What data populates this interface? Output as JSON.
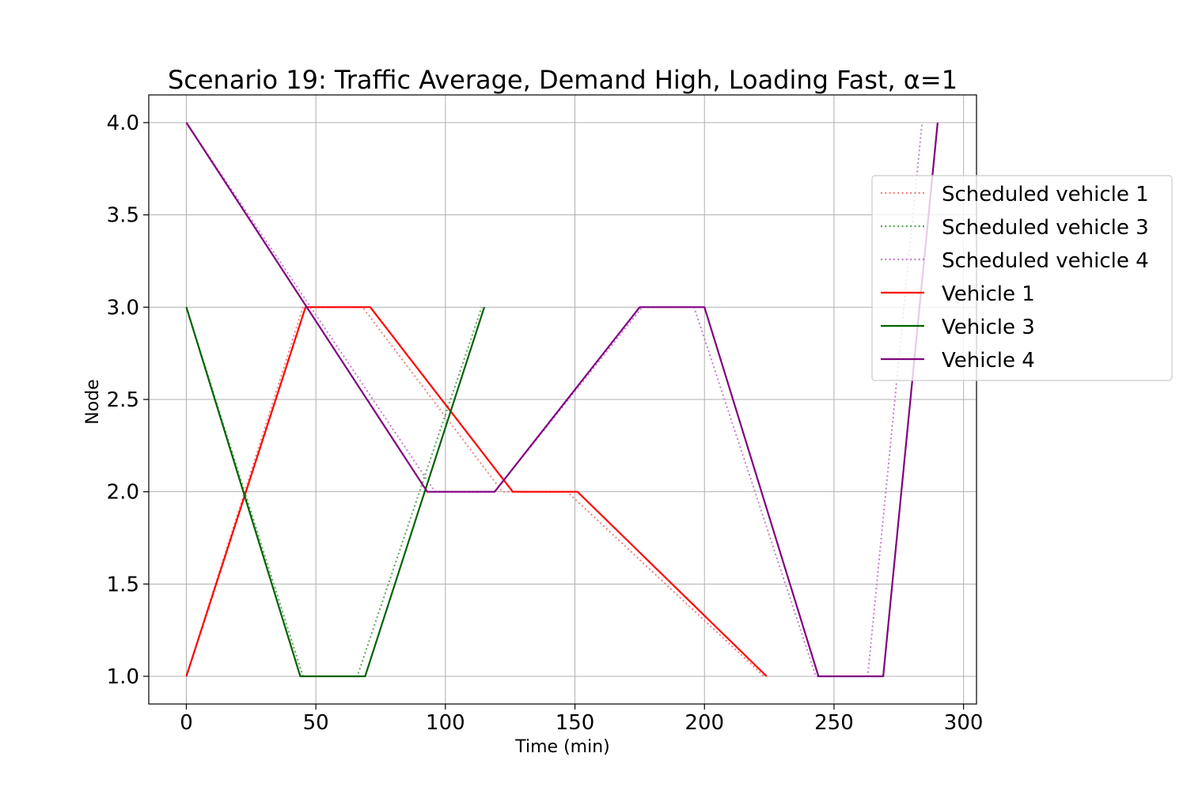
{
  "chart_data": {
    "type": "line",
    "title": "Scenario 19: Traffic Average, Demand High, Loading Fast, α=1",
    "xlabel": "Time (min)",
    "ylabel": "Node",
    "xlim": [
      -14.5,
      305
    ],
    "ylim": [
      0.85,
      4.15
    ],
    "xticks": [
      0,
      50,
      100,
      150,
      200,
      250,
      300
    ],
    "yticks": [
      1.0,
      1.5,
      2.0,
      2.5,
      3.0,
      3.5,
      4.0
    ],
    "xtick_labels": [
      "0",
      "50",
      "100",
      "150",
      "200",
      "250",
      "300"
    ],
    "ytick_labels": [
      "1.0",
      "1.5",
      "2.0",
      "2.5",
      "3.0",
      "3.5",
      "4.0"
    ],
    "grid": true,
    "legend_position": "right",
    "series": [
      {
        "name": "Scheduled vehicle 1",
        "style": "dotted",
        "color": "#f08080",
        "points": [
          [
            0,
            1
          ],
          [
            45,
            3
          ],
          [
            68,
            3
          ],
          [
            122,
            2
          ],
          [
            147,
            2
          ],
          [
            223,
            1
          ]
        ]
      },
      {
        "name": "Scheduled vehicle 3",
        "style": "dotted",
        "color": "#5aa55a",
        "points": [
          [
            0,
            3
          ],
          [
            45,
            1
          ],
          [
            66,
            1
          ],
          [
            114,
            3
          ]
        ]
      },
      {
        "name": "Scheduled vehicle 4",
        "style": "dotted",
        "color": "#c77ccf",
        "points": [
          [
            0,
            4
          ],
          [
            96,
            2
          ],
          [
            119,
            2
          ],
          [
            176,
            3
          ],
          [
            196,
            3
          ],
          [
            243,
            1
          ],
          [
            263,
            1
          ],
          [
            284,
            4
          ]
        ]
      },
      {
        "name": "Vehicle 1",
        "style": "solid",
        "color": "#ff0000",
        "points": [
          [
            0,
            1
          ],
          [
            46,
            3
          ],
          [
            71,
            3
          ],
          [
            126,
            2
          ],
          [
            151,
            2
          ],
          [
            224,
            1
          ]
        ]
      },
      {
        "name": "Vehicle 3",
        "style": "solid",
        "color": "#006400",
        "points": [
          [
            0,
            3
          ],
          [
            44,
            1
          ],
          [
            69,
            1
          ],
          [
            115,
            3
          ]
        ]
      },
      {
        "name": "Vehicle 4",
        "style": "solid",
        "color": "#800080",
        "points": [
          [
            0,
            4
          ],
          [
            93,
            2
          ],
          [
            119,
            2
          ],
          [
            175,
            3
          ],
          [
            200,
            3
          ],
          [
            244,
            1
          ],
          [
            269,
            1
          ],
          [
            290,
            4
          ]
        ]
      }
    ]
  }
}
